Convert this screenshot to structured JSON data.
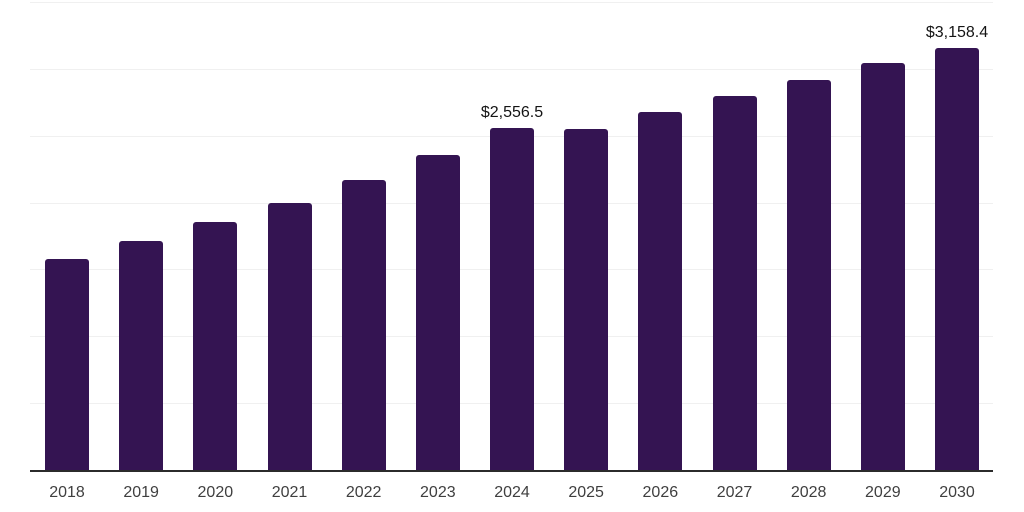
{
  "chart": {
    "bar_color": "#341452",
    "gridline_color": "#f0f0f0",
    "axis_color": "#2b2b2b",
    "tick_label_color": "#3f3f3f",
    "value_label_color": "#141414",
    "background_color": "#ffffff"
  },
  "chart_data": {
    "type": "bar",
    "categories": [
      "2018",
      "2019",
      "2020",
      "2021",
      "2022",
      "2023",
      "2024",
      "2025",
      "2026",
      "2027",
      "2028",
      "2029",
      "2030"
    ],
    "values": [
      1580,
      1710,
      1855,
      2000,
      2170,
      2355,
      2556.5,
      2550,
      2675,
      2795,
      2920,
      3045,
      3158.4
    ],
    "data_labels": [
      "",
      "",
      "",
      "",
      "",
      "",
      "$2,556.5",
      "",
      "",
      "",
      "",
      "",
      "$3,158.4"
    ],
    "xlabel": "",
    "ylabel": "",
    "ylim": [
      0,
      3500
    ],
    "gridline_interval": 500,
    "grid": "horizontal",
    "legend": "none",
    "y_axis_ticks_visible": false
  }
}
